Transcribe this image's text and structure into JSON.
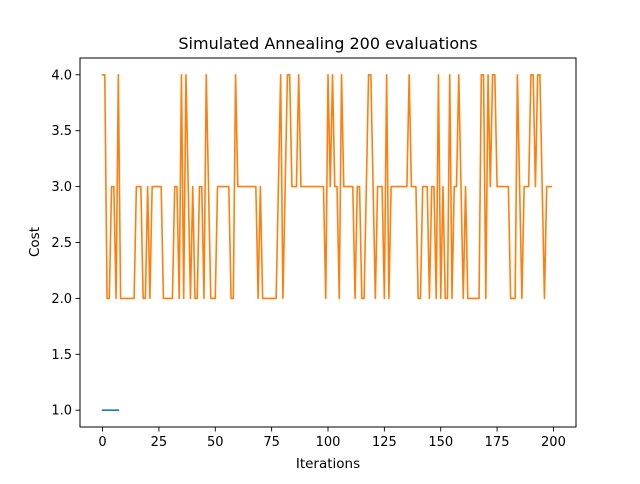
{
  "chart_data": {
    "type": "line",
    "title": "Simulated Annealing 200 evaluations",
    "xlabel": "Iterations",
    "ylabel": "Cost",
    "xlim": [
      -10,
      210
    ],
    "ylim": [
      0.85,
      4.15
    ],
    "xticks": [
      0,
      25,
      50,
      75,
      100,
      125,
      150,
      175,
      200
    ],
    "yticks": [
      1.0,
      1.5,
      2.0,
      2.5,
      3.0,
      3.5,
      4.0
    ],
    "ytick_labels": [
      "1.0",
      "1.5",
      "2.0",
      "2.5",
      "3.0",
      "3.5",
      "4.0"
    ],
    "grid": false,
    "series": [
      {
        "color": "#1f77b4",
        "x": [
          0,
          1,
          2,
          3,
          4,
          5,
          6,
          7
        ],
        "y": [
          1,
          1,
          1,
          1,
          1,
          1,
          1,
          1
        ]
      },
      {
        "color": "#ff7f0e",
        "x": [
          0,
          1,
          2,
          3,
          4,
          5,
          6,
          7,
          8,
          9,
          10,
          11,
          12,
          13,
          14,
          15,
          16,
          17,
          18,
          19,
          20,
          21,
          22,
          23,
          24,
          25,
          26,
          27,
          28,
          29,
          30,
          31,
          32,
          33,
          34,
          35,
          36,
          37,
          38,
          39,
          40,
          41,
          42,
          43,
          44,
          45,
          46,
          47,
          48,
          49,
          50,
          51,
          52,
          53,
          54,
          55,
          56,
          57,
          58,
          59,
          60,
          61,
          62,
          63,
          64,
          65,
          66,
          67,
          68,
          69,
          70,
          71,
          72,
          73,
          74,
          75,
          76,
          77,
          78,
          79,
          80,
          81,
          82,
          83,
          84,
          85,
          86,
          87,
          88,
          89,
          90,
          91,
          92,
          93,
          94,
          95,
          96,
          97,
          98,
          99,
          100,
          101,
          102,
          103,
          104,
          105,
          106,
          107,
          108,
          109,
          110,
          111,
          112,
          113,
          114,
          115,
          116,
          117,
          118,
          119,
          120,
          121,
          122,
          123,
          124,
          125,
          126,
          127,
          128,
          129,
          130,
          131,
          132,
          133,
          134,
          135,
          136,
          137,
          138,
          139,
          140,
          141,
          142,
          143,
          144,
          145,
          146,
          147,
          148,
          149,
          150,
          151,
          152,
          153,
          154,
          155,
          156,
          157,
          158,
          159,
          160,
          161,
          162,
          163,
          164,
          165,
          166,
          167,
          168,
          169,
          170,
          171,
          172,
          173,
          174,
          175,
          176,
          177,
          178,
          179,
          180,
          181,
          182,
          183,
          184,
          185,
          186,
          187,
          188,
          189,
          190,
          191,
          192,
          193,
          194,
          195,
          196,
          197,
          198,
          199
        ],
        "y": [
          4,
          4,
          2,
          2,
          3,
          3,
          2,
          4,
          2,
          2,
          2,
          2,
          2,
          2,
          2,
          3,
          3,
          3,
          2,
          2,
          3,
          2,
          3,
          3,
          3,
          3,
          3,
          2,
          2,
          2,
          2,
          2,
          3,
          3,
          2,
          4,
          2,
          4,
          3,
          2,
          3,
          2,
          2,
          3,
          3,
          2,
          4,
          3,
          2,
          2,
          2,
          3,
          3,
          3,
          3,
          3,
          3,
          2,
          2,
          4,
          3,
          3,
          3,
          3,
          3,
          3,
          3,
          3,
          3,
          2,
          3,
          2,
          2,
          2,
          2,
          2,
          2,
          2,
          3,
          4,
          2,
          3,
          4,
          4,
          3,
          3,
          3,
          4,
          3,
          3,
          3,
          3,
          3,
          3,
          3,
          3,
          3,
          3,
          3,
          2,
          4,
          3,
          4,
          3,
          3,
          2,
          4,
          3,
          3,
          3,
          3,
          3,
          2,
          3,
          3,
          2,
          2,
          3,
          4,
          4,
          3,
          2,
          3,
          3,
          3,
          2,
          4,
          2,
          3,
          3,
          3,
          3,
          3,
          3,
          3,
          3,
          4,
          3,
          3,
          3,
          2,
          2,
          3,
          3,
          3,
          2,
          3,
          3,
          2,
          4,
          2,
          3,
          2,
          2,
          4,
          2,
          3,
          3,
          4,
          3,
          2,
          3,
          2,
          2,
          2,
          2,
          2,
          2,
          4,
          4,
          2,
          4,
          3,
          4,
          4,
          3,
          3,
          3,
          3,
          3,
          3,
          2,
          2,
          2,
          4,
          3,
          2,
          3,
          3,
          3,
          4,
          4,
          3,
          4,
          4,
          3,
          2,
          3,
          3,
          3
        ]
      }
    ]
  }
}
